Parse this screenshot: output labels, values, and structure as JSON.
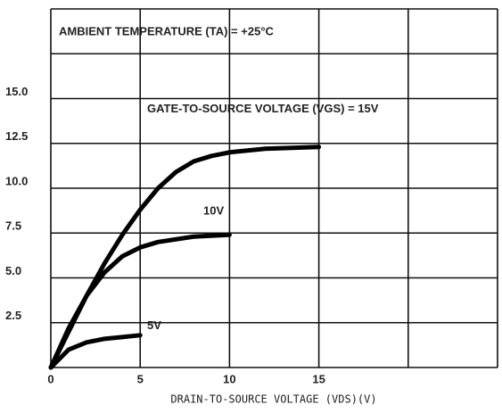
{
  "chart_data": {
    "type": "line",
    "annotation": "AMBIENT TEMPERATURE (TA) = +25°C",
    "x_label": "DRAIN-TO-SOURCE VOLTAGE (VDS)(V)",
    "xlim": [
      0,
      25
    ],
    "ylim": [
      0,
      20
    ],
    "xticks": [
      0,
      5,
      10,
      15
    ],
    "yticks": [
      2.5,
      {
        "value": 5,
        "label": "5.0"
      },
      7.5,
      {
        "value": 10,
        "label": "10.0"
      },
      12.5,
      {
        "value": 15,
        "label": "15.0"
      }
    ],
    "xgrid": [
      0,
      5,
      10,
      15,
      20,
      25
    ],
    "ygrid": [
      0,
      2.5,
      5,
      7.5,
      10,
      12.5,
      15,
      17.5,
      20
    ],
    "grid": true,
    "series": [
      {
        "name": "GATE-TO-SOURCE VOLTAGE (VGS) = 15V",
        "color": "#000000",
        "x": [
          0,
          1,
          2,
          3,
          4,
          5,
          6,
          7,
          8,
          9,
          10,
          12,
          15
        ],
        "values": [
          0,
          2,
          4,
          5.8,
          7.4,
          8.8,
          10,
          10.9,
          11.5,
          11.8,
          12,
          12.2,
          12.3
        ]
      },
      {
        "name": "10V",
        "color": "#000000",
        "x": [
          0,
          1,
          2,
          3,
          4,
          5,
          6,
          8,
          10
        ],
        "values": [
          0,
          2.2,
          4,
          5.3,
          6.2,
          6.7,
          7,
          7.3,
          7.4
        ]
      },
      {
        "name": "5V",
        "color": "#000000",
        "x": [
          0,
          1,
          2,
          3,
          4,
          5
        ],
        "values": [
          0,
          1,
          1.4,
          1.6,
          1.7,
          1.8
        ]
      }
    ]
  }
}
